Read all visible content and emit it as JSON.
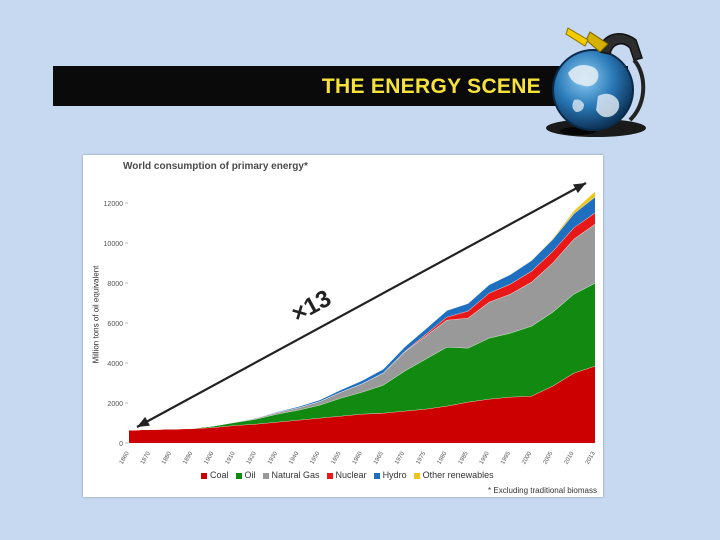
{
  "slide": {
    "title": "THE ENERGY SCENE"
  },
  "chart_data": {
    "type": "area",
    "stacked": true,
    "title": "World consumption of primary energy*",
    "ylabel": "Million tons of oil equivalent",
    "xlabel": "",
    "ylim": [
      0,
      13000
    ],
    "yticks": [
      0,
      2000,
      4000,
      6000,
      8000,
      10000,
      12000
    ],
    "ytick_labels": [
      "0",
      "2000",
      "4000",
      "6000",
      "8000",
      "10000",
      "12000"
    ],
    "x": [
      1860,
      1870,
      1880,
      1890,
      1900,
      1910,
      1920,
      1930,
      1940,
      1950,
      1955,
      1960,
      1965,
      1970,
      1975,
      1980,
      1985,
      1990,
      1995,
      2000,
      2005,
      2010,
      2013
    ],
    "xtick_labels": [
      "1860",
      "1870",
      "1880",
      "1890",
      "1900",
      "1910",
      "1920",
      "1930",
      "1940",
      "1950",
      "1955",
      "1960",
      "1965",
      "1970",
      "1975",
      "1980",
      "1985",
      "1990",
      "1995",
      "2000",
      "2005",
      "2010",
      "2013"
    ],
    "series": [
      {
        "name": "Coal",
        "color": "#cc0000",
        "values": [
          650,
          680,
          700,
          720,
          780,
          880,
          950,
          1050,
          1150,
          1250,
          1350,
          1450,
          1500,
          1600,
          1700,
          1850,
          2050,
          2200,
          2300,
          2350,
          2850,
          3500,
          3850
        ]
      },
      {
        "name": "Oil",
        "color": "#128a12",
        "values": [
          0,
          0,
          0,
          20,
          80,
          150,
          250,
          400,
          500,
          650,
          900,
          1100,
          1400,
          2000,
          2500,
          2950,
          2700,
          3050,
          3200,
          3500,
          3700,
          3950,
          4150
        ]
      },
      {
        "name": "Natural Gas",
        "color": "#999999",
        "values": [
          0,
          0,
          0,
          0,
          0,
          20,
          50,
          80,
          120,
          180,
          300,
          420,
          600,
          950,
          1150,
          1350,
          1500,
          1800,
          1950,
          2200,
          2450,
          2750,
          2950
        ]
      },
      {
        "name": "Nuclear",
        "color": "#e81818",
        "values": [
          0,
          0,
          0,
          0,
          0,
          0,
          0,
          0,
          0,
          0,
          0,
          0,
          5,
          20,
          80,
          150,
          350,
          450,
          500,
          550,
          580,
          570,
          560
        ]
      },
      {
        "name": "Hydro",
        "color": "#1f6fc0",
        "values": [
          0,
          0,
          0,
          0,
          0,
          10,
          20,
          40,
          60,
          80,
          120,
          160,
          200,
          240,
          280,
          330,
          380,
          420,
          480,
          530,
          600,
          700,
          800
        ]
      },
      {
        "name": "Other renewables",
        "color": "#f0c419",
        "values": [
          0,
          0,
          0,
          0,
          0,
          0,
          0,
          0,
          0,
          0,
          0,
          0,
          0,
          0,
          0,
          5,
          10,
          15,
          20,
          30,
          50,
          150,
          280
        ]
      }
    ],
    "annotation": "×13",
    "footnote": "* Excluding traditional biomass",
    "legend_position": "bottom",
    "grid": false
  }
}
